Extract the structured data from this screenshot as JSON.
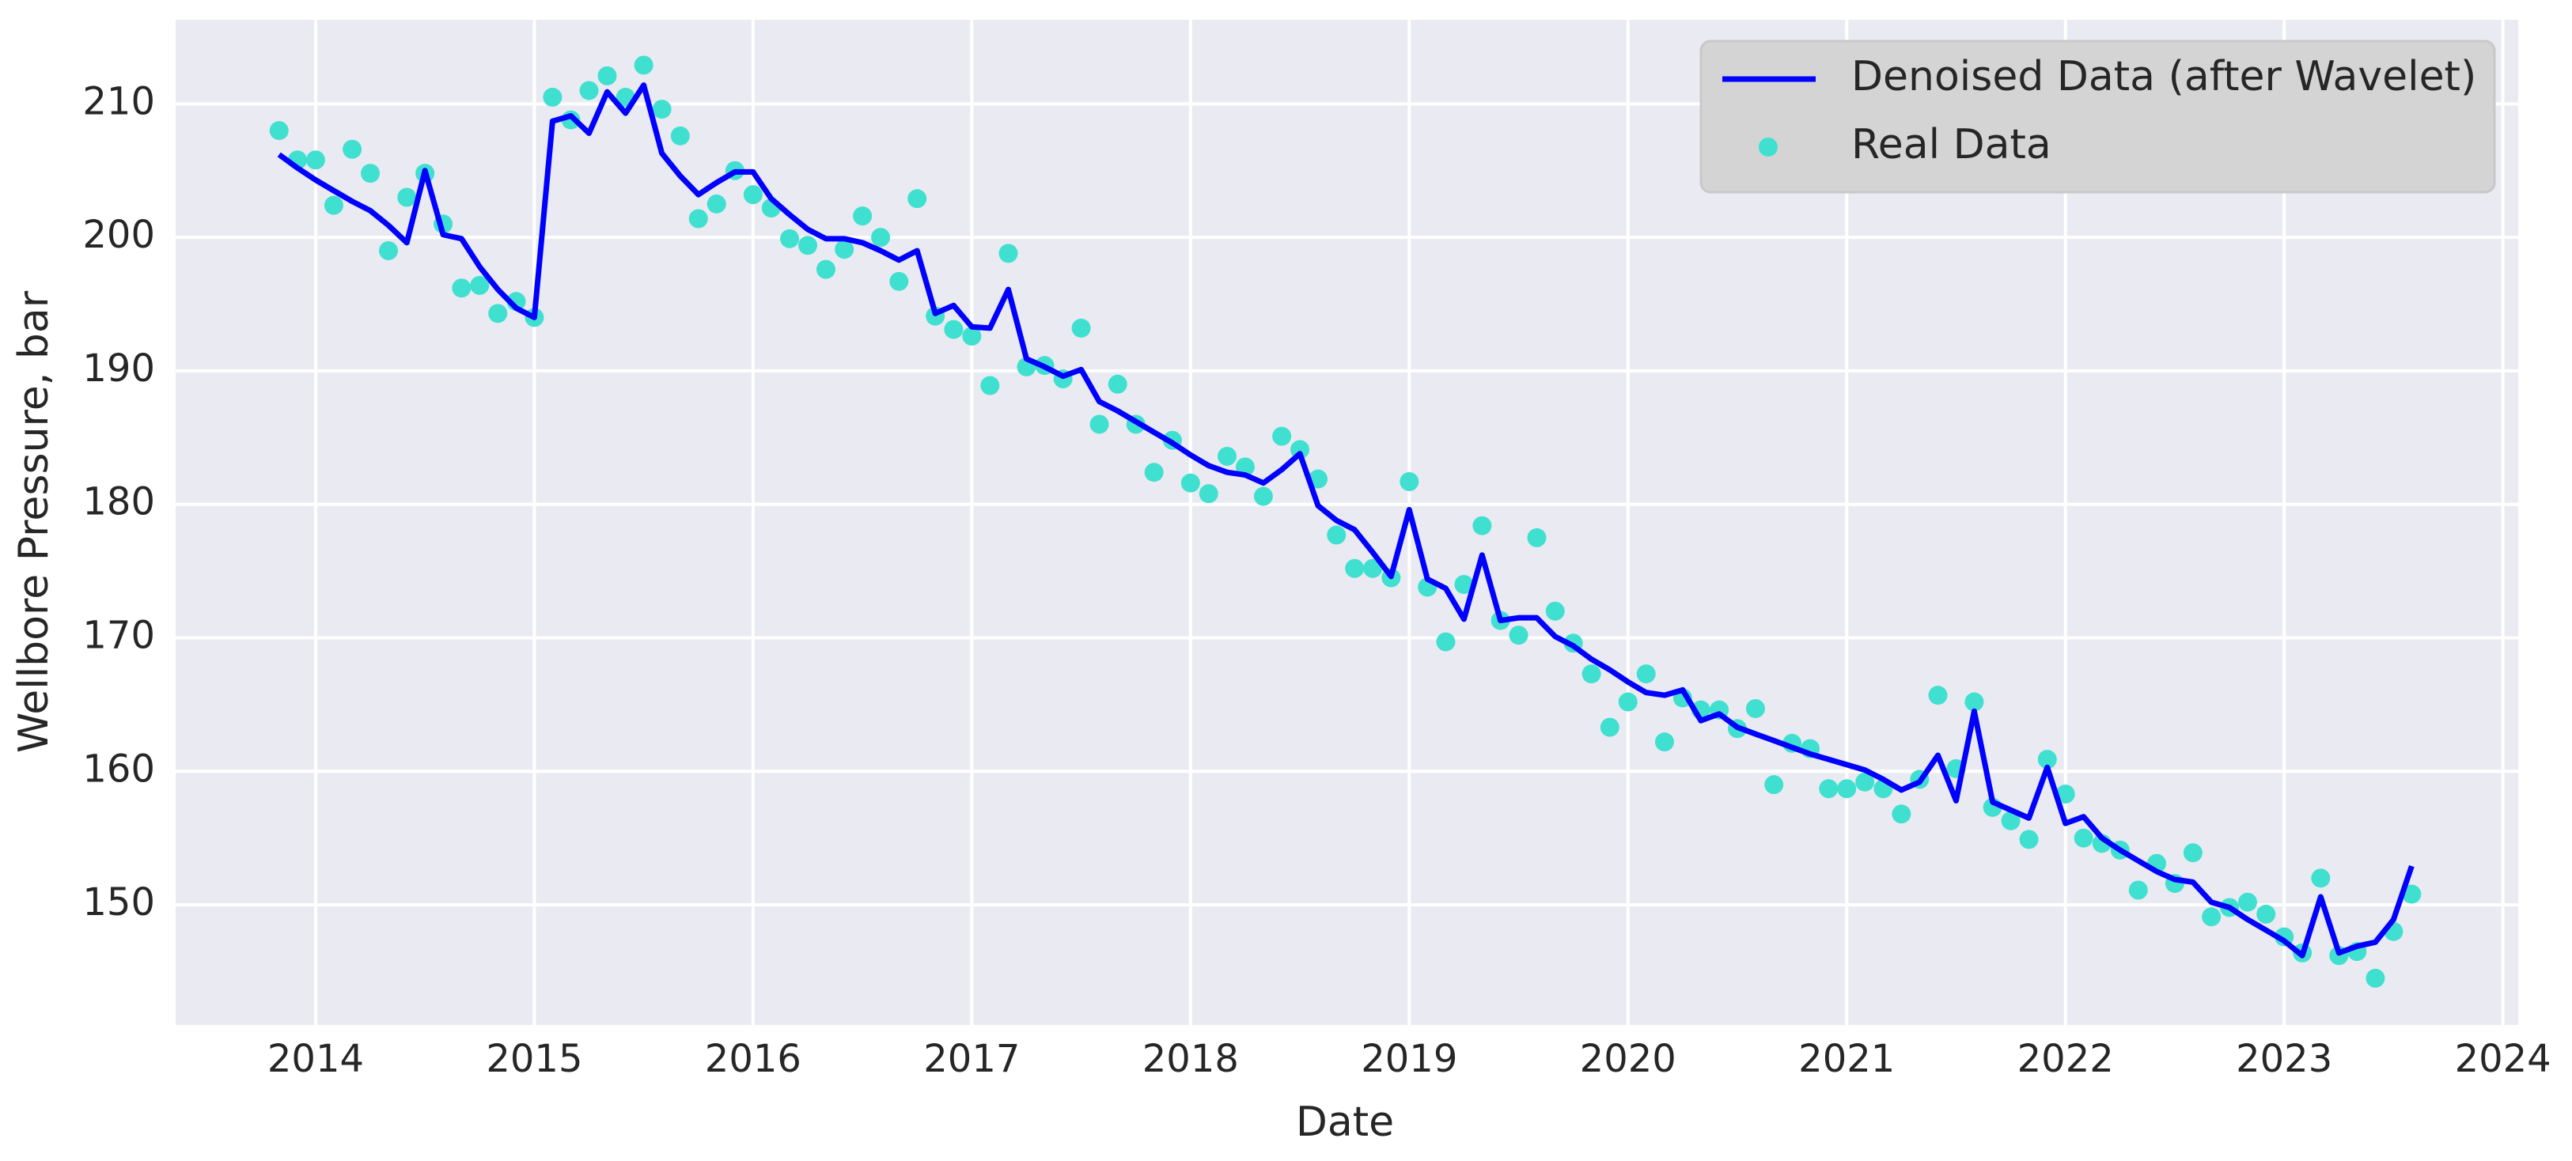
{
  "chart_data": {
    "type": "line",
    "xlabel": "Date",
    "ylabel": "Wellbore Pressure, bar",
    "x": [
      2013.833,
      2013.917,
      2014.0,
      2014.083,
      2014.167,
      2014.25,
      2014.333,
      2014.417,
      2014.5,
      2014.583,
      2014.667,
      2014.75,
      2014.833,
      2014.917,
      2015.0,
      2015.083,
      2015.167,
      2015.25,
      2015.333,
      2015.417,
      2015.5,
      2015.583,
      2015.667,
      2015.75,
      2015.833,
      2015.917,
      2016.0,
      2016.083,
      2016.167,
      2016.25,
      2016.333,
      2016.417,
      2016.5,
      2016.583,
      2016.667,
      2016.75,
      2016.833,
      2016.917,
      2017.0,
      2017.083,
      2017.167,
      2017.25,
      2017.333,
      2017.417,
      2017.5,
      2017.583,
      2017.667,
      2017.75,
      2017.833,
      2017.917,
      2018.0,
      2018.083,
      2018.167,
      2018.25,
      2018.333,
      2018.417,
      2018.5,
      2018.583,
      2018.667,
      2018.75,
      2018.833,
      2018.917,
      2019.0,
      2019.083,
      2019.167,
      2019.25,
      2019.333,
      2019.417,
      2019.5,
      2019.583,
      2019.667,
      2019.75,
      2019.833,
      2019.917,
      2020.0,
      2020.083,
      2020.167,
      2020.25,
      2020.333,
      2020.417,
      2020.5,
      2020.583,
      2020.667,
      2020.75,
      2020.833,
      2020.917,
      2021.0,
      2021.083,
      2021.167,
      2021.25,
      2021.333,
      2021.417,
      2021.5,
      2021.583,
      2021.667,
      2021.75,
      2021.833,
      2021.917,
      2022.0,
      2022.083,
      2022.167,
      2022.25,
      2022.333,
      2022.417,
      2022.5,
      2022.583,
      2022.667,
      2022.75,
      2022.833,
      2022.917,
      2023.0,
      2023.083,
      2023.167,
      2023.25,
      2023.333,
      2023.417,
      2023.5,
      2023.583
    ],
    "series": [
      {
        "name": "Denoised Data (after Wavelet)",
        "color": "#0000ff",
        "type": "line",
        "values": [
          206.2,
          205.2,
          204.3,
          203.5,
          202.7,
          202.0,
          200.9,
          199.6,
          205.0,
          200.2,
          199.9,
          197.8,
          196.1,
          194.7,
          194.0,
          208.7,
          209.1,
          207.8,
          210.9,
          209.3,
          211.4,
          206.3,
          204.6,
          203.2,
          204.1,
          204.9,
          204.9,
          202.9,
          201.7,
          200.6,
          199.9,
          199.9,
          199.6,
          199.0,
          198.3,
          199.0,
          194.3,
          194.9,
          193.3,
          193.2,
          196.1,
          190.9,
          190.3,
          189.6,
          190.1,
          187.7,
          187.0,
          186.2,
          185.4,
          184.6,
          183.7,
          182.9,
          182.4,
          182.2,
          181.6,
          182.6,
          183.8,
          179.9,
          178.8,
          178.1,
          176.4,
          174.6,
          179.6,
          174.4,
          173.7,
          171.4,
          176.2,
          171.3,
          171.5,
          171.5,
          170.1,
          169.4,
          168.4,
          167.6,
          166.7,
          165.9,
          165.7,
          166.1,
          163.8,
          164.3,
          163.3,
          162.8,
          162.3,
          161.8,
          161.3,
          160.9,
          160.5,
          160.1,
          159.4,
          158.6,
          159.2,
          161.2,
          157.8,
          164.5,
          157.7,
          157.1,
          156.5,
          160.3,
          156.1,
          156.6,
          155.0,
          154.1,
          153.3,
          152.5,
          151.9,
          151.7,
          150.2,
          149.8,
          148.9,
          148.1,
          147.3,
          146.2,
          150.6,
          146.4,
          146.9,
          147.2,
          148.9,
          152.9
        ]
      },
      {
        "name": "Real Data",
        "color": "#40e0d0",
        "type": "scatter",
        "values": [
          208.0,
          205.8,
          205.8,
          202.4,
          206.6,
          204.8,
          199.0,
          203.0,
          204.8,
          201.0,
          196.2,
          196.4,
          194.3,
          195.2,
          194.0,
          210.5,
          208.8,
          211.0,
          212.1,
          210.5,
          212.9,
          209.6,
          207.6,
          201.4,
          202.5,
          205.0,
          203.2,
          202.2,
          199.9,
          199.4,
          197.6,
          199.1,
          201.6,
          200.0,
          196.7,
          202.9,
          194.1,
          193.1,
          192.6,
          188.9,
          198.8,
          190.3,
          190.4,
          189.4,
          193.2,
          186.0,
          189.0,
          186.0,
          182.4,
          184.8,
          181.6,
          180.8,
          183.6,
          182.8,
          180.6,
          185.1,
          184.1,
          181.9,
          177.7,
          175.2,
          175.2,
          174.5,
          181.7,
          173.8,
          169.7,
          174.0,
          178.4,
          171.3,
          170.2,
          177.5,
          172.0,
          169.6,
          167.3,
          163.3,
          165.2,
          167.3,
          162.2,
          165.5,
          164.6,
          164.6,
          163.2,
          164.7,
          159.0,
          162.1,
          161.7,
          158.7,
          158.7,
          159.2,
          158.7,
          156.8,
          159.4,
          165.7,
          160.2,
          165.2,
          157.3,
          156.3,
          154.9,
          160.9,
          158.3,
          155.0,
          154.6,
          154.1,
          151.1,
          153.1,
          151.6,
          153.9,
          149.1,
          149.8,
          150.2,
          149.3,
          147.6,
          146.4,
          152.0,
          146.2,
          146.5,
          144.5,
          148.0,
          150.8
        ]
      }
    ],
    "xlim": [
      2013.36,
      2024.07
    ],
    "ylim": [
      141.0,
      216.3
    ],
    "xticks": [
      2014,
      2015,
      2016,
      2017,
      2018,
      2019,
      2020,
      2021,
      2022,
      2023,
      2024
    ],
    "yticks": [
      150,
      160,
      170,
      180,
      190,
      200,
      210
    ],
    "grid": true,
    "legend": "upper right"
  }
}
